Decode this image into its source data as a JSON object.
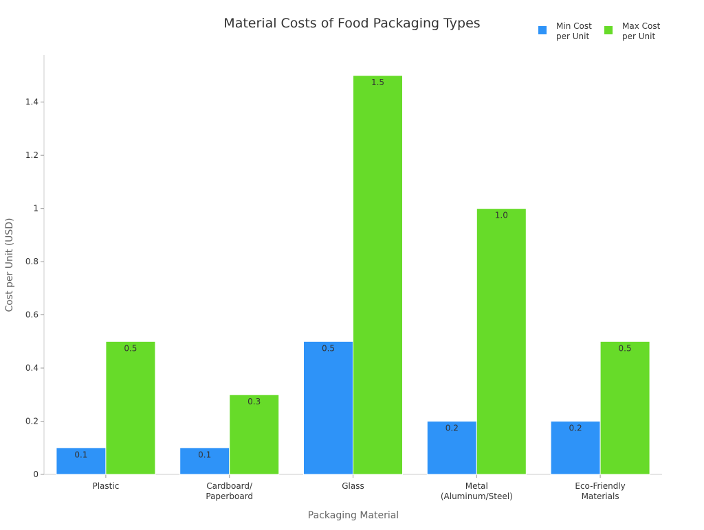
{
  "chart_data": {
    "type": "bar",
    "title": "Material Costs of Food Packaging Types",
    "xlabel": "Packaging Material",
    "ylabel": "Cost per Unit (USD)",
    "categories": [
      [
        "Plastic"
      ],
      [
        "Cardboard/",
        "Paperboard"
      ],
      [
        "Glass"
      ],
      [
        "Metal",
        "(Aluminum/Steel)"
      ],
      [
        "Eco-Friendly",
        "Materials"
      ]
    ],
    "series": [
      {
        "name": [
          "Min Cost",
          "per Unit"
        ],
        "color": "#2E93F8",
        "values": [
          0.1,
          0.1,
          0.5,
          0.2,
          0.2
        ],
        "labels": [
          "0.1",
          "0.1",
          "0.5",
          "0.2",
          "0.2"
        ]
      },
      {
        "name": [
          "Max Cost",
          "per Unit"
        ],
        "color": "#67DB29",
        "values": [
          0.5,
          0.3,
          1.5,
          1.0,
          0.5
        ],
        "labels": [
          "0.5",
          "0.3",
          "1.5",
          "1.0",
          "0.5"
        ]
      }
    ],
    "yticks": [
      0,
      0.2,
      0.4,
      0.6,
      0.8,
      1,
      1.2,
      1.4
    ],
    "ytick_labels": [
      "0",
      "0.2",
      "0.4",
      "0.6",
      "0.8",
      "1",
      "1.2",
      "1.4"
    ],
    "ylim": [
      0,
      1.5
    ],
    "grid": false,
    "legend": "top-right"
  }
}
